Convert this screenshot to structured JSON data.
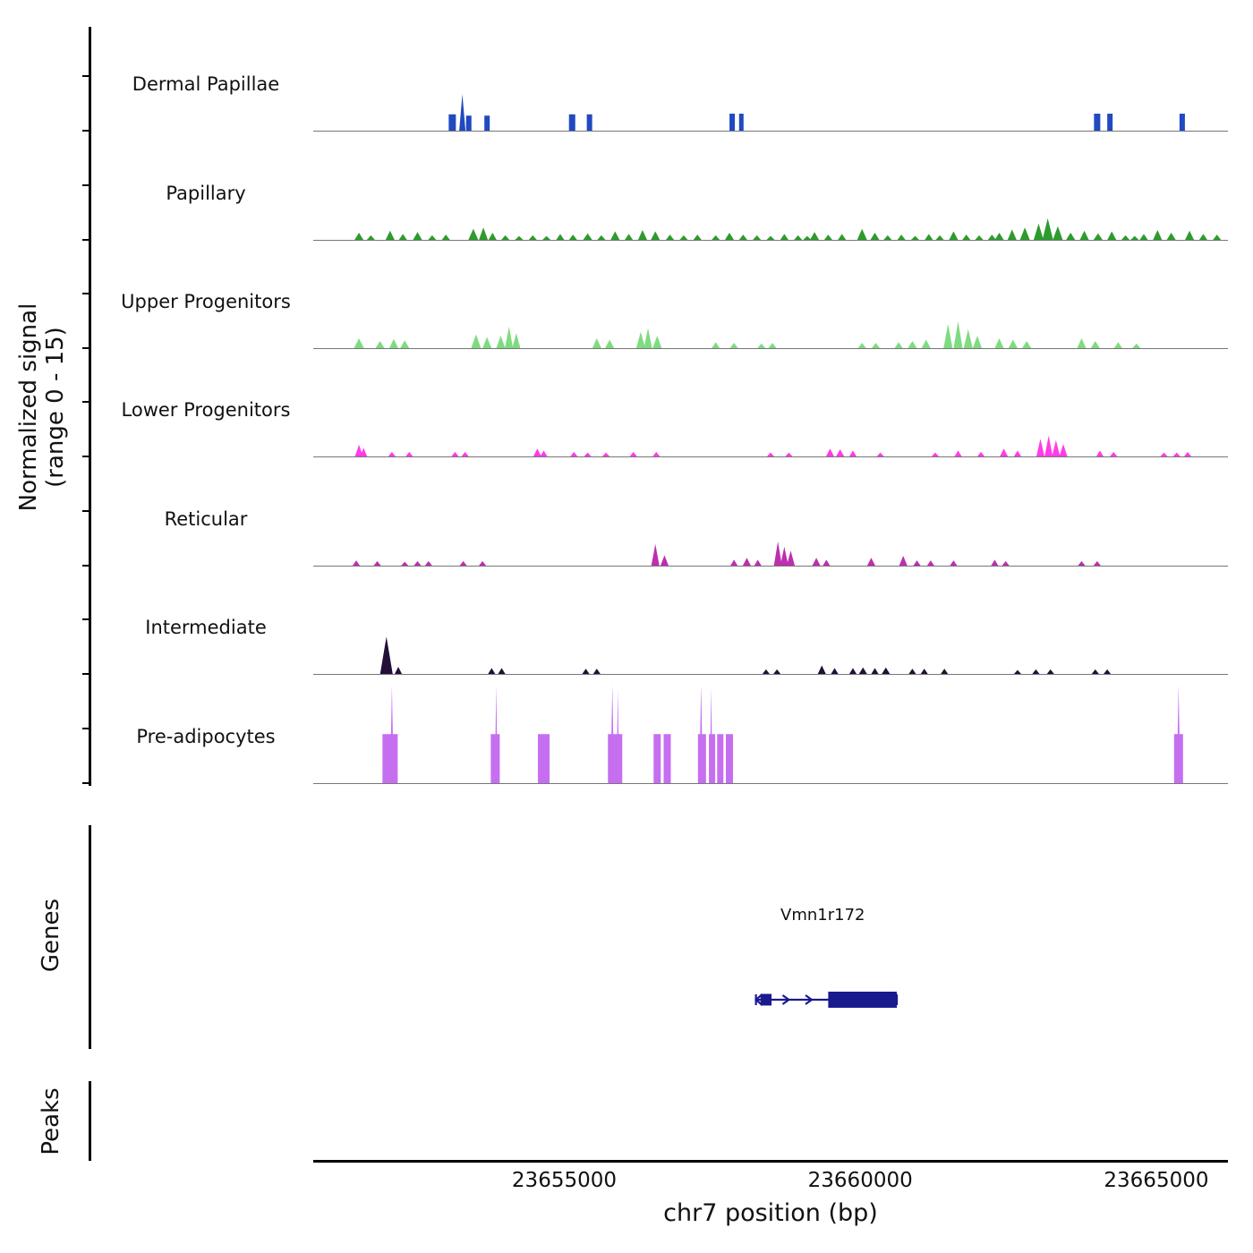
{
  "figure": {
    "x_axis_title": "chr7 position (bp)"
  },
  "chart_data": {
    "type": "area",
    "title": "",
    "x_axis": {
      "label": "chr7 position (bp)",
      "range_bp": [
        23650760,
        23666210
      ],
      "ticks_bp": [
        23655000,
        23660000,
        23665000
      ]
    },
    "y_axis": {
      "label": "Normalized signal (range 0 - 15)",
      "label_line1": "Normalized signal",
      "label_line2": "(range 0 - 15)",
      "range": [
        0,
        15
      ]
    },
    "tracks": [
      {
        "name": "Dermal Papillae",
        "color": "#2149c1",
        "bars": [
          [
            0.152,
            2.5,
            8
          ],
          [
            0.17,
            2.3,
            6
          ],
          [
            0.19,
            2.3,
            6
          ],
          [
            0.283,
            2.5,
            7
          ],
          [
            0.302,
            2.5,
            6
          ],
          [
            0.458,
            2.6,
            6
          ],
          [
            0.468,
            2.6,
            5
          ],
          [
            0.857,
            2.6,
            7
          ],
          [
            0.871,
            2.6,
            6
          ],
          [
            0.95,
            2.6,
            6
          ]
        ],
        "bumps": [
          [
            0.163,
            5.6,
            7
          ]
        ]
      },
      {
        "name": "Papillary",
        "color": "#2d9b2d",
        "bars": [],
        "bumps": [
          [
            0.05,
            1.1,
            10
          ],
          [
            0.063,
            0.7,
            9
          ],
          [
            0.084,
            1.4,
            10
          ],
          [
            0.098,
            0.9,
            9
          ],
          [
            0.114,
            1.2,
            10
          ],
          [
            0.13,
            0.7,
            9
          ],
          [
            0.145,
            0.8,
            9
          ],
          [
            0.175,
            1.7,
            11
          ],
          [
            0.186,
            1.9,
            10
          ],
          [
            0.196,
            1.1,
            9
          ],
          [
            0.21,
            0.7,
            9
          ],
          [
            0.225,
            0.6,
            9
          ],
          [
            0.24,
            0.7,
            9
          ],
          [
            0.255,
            0.6,
            9
          ],
          [
            0.27,
            0.9,
            9
          ],
          [
            0.284,
            0.8,
            9
          ],
          [
            0.3,
            1.0,
            10
          ],
          [
            0.315,
            0.7,
            9
          ],
          [
            0.33,
            1.3,
            10
          ],
          [
            0.345,
            0.9,
            9
          ],
          [
            0.36,
            1.5,
            10
          ],
          [
            0.374,
            1.3,
            10
          ],
          [
            0.39,
            0.8,
            9
          ],
          [
            0.405,
            0.7,
            9
          ],
          [
            0.42,
            0.8,
            9
          ],
          [
            0.44,
            0.7,
            9
          ],
          [
            0.455,
            1.1,
            10
          ],
          [
            0.47,
            0.8,
            9
          ],
          [
            0.485,
            0.7,
            9
          ],
          [
            0.5,
            0.6,
            9
          ],
          [
            0.515,
            0.9,
            9
          ],
          [
            0.53,
            0.7,
            9
          ],
          [
            0.54,
            0.6,
            9
          ],
          [
            0.548,
            1.2,
            10
          ],
          [
            0.563,
            0.8,
            9
          ],
          [
            0.578,
            0.9,
            9
          ],
          [
            0.6,
            1.7,
            11
          ],
          [
            0.614,
            1.1,
            10
          ],
          [
            0.628,
            0.7,
            9
          ],
          [
            0.643,
            0.8,
            9
          ],
          [
            0.658,
            0.6,
            9
          ],
          [
            0.673,
            0.9,
            9
          ],
          [
            0.685,
            0.7,
            9
          ],
          [
            0.7,
            1.3,
            10
          ],
          [
            0.714,
            0.8,
            9
          ],
          [
            0.728,
            0.7,
            9
          ],
          [
            0.742,
            0.8,
            9
          ],
          [
            0.75,
            1.1,
            10
          ],
          [
            0.764,
            1.6,
            10
          ],
          [
            0.778,
            1.9,
            11
          ],
          [
            0.793,
            2.5,
            11
          ],
          [
            0.803,
            3.3,
            12
          ],
          [
            0.814,
            2.1,
            11
          ],
          [
            0.828,
            1.1,
            10
          ],
          [
            0.843,
            1.4,
            10
          ],
          [
            0.858,
            1.0,
            10
          ],
          [
            0.873,
            1.3,
            10
          ],
          [
            0.888,
            0.7,
            9
          ],
          [
            0.898,
            0.6,
            9
          ],
          [
            0.908,
            0.9,
            9
          ],
          [
            0.923,
            1.5,
            10
          ],
          [
            0.938,
            1.1,
            10
          ],
          [
            0.958,
            1.4,
            10
          ],
          [
            0.973,
            0.9,
            9
          ],
          [
            0.988,
            0.8,
            9
          ]
        ]
      },
      {
        "name": "Upper Progenitors",
        "color": "#7fdb7f",
        "bars": [],
        "bumps": [
          [
            0.05,
            1.5,
            11
          ],
          [
            0.073,
            1.1,
            10
          ],
          [
            0.088,
            1.4,
            10
          ],
          [
            0.1,
            1.2,
            10
          ],
          [
            0.178,
            2.1,
            11
          ],
          [
            0.19,
            1.7,
            10
          ],
          [
            0.205,
            1.9,
            10
          ],
          [
            0.214,
            3.3,
            9
          ],
          [
            0.222,
            2.3,
            9
          ],
          [
            0.31,
            1.5,
            10
          ],
          [
            0.324,
            1.3,
            10
          ],
          [
            0.358,
            2.5,
            10
          ],
          [
            0.366,
            3.1,
            9
          ],
          [
            0.376,
            1.9,
            10
          ],
          [
            0.44,
            0.9,
            9
          ],
          [
            0.46,
            0.8,
            9
          ],
          [
            0.49,
            0.7,
            9
          ],
          [
            0.502,
            0.8,
            9
          ],
          [
            0.6,
            0.8,
            9
          ],
          [
            0.615,
            0.8,
            9
          ],
          [
            0.64,
            0.9,
            9
          ],
          [
            0.655,
            1.1,
            10
          ],
          [
            0.67,
            1.3,
            10
          ],
          [
            0.694,
            3.7,
            10
          ],
          [
            0.705,
            4.1,
            10
          ],
          [
            0.716,
            2.9,
            10
          ],
          [
            0.726,
            1.9,
            10
          ],
          [
            0.75,
            1.5,
            10
          ],
          [
            0.765,
            1.3,
            10
          ],
          [
            0.78,
            1.1,
            10
          ],
          [
            0.84,
            1.5,
            10
          ],
          [
            0.855,
            1.1,
            10
          ],
          [
            0.88,
            0.9,
            9
          ],
          [
            0.9,
            0.7,
            9
          ]
        ]
      },
      {
        "name": "Lower Progenitors",
        "color": "#ff3ce8",
        "bars": [],
        "bumps": [
          [
            0.05,
            1.8,
            9
          ],
          [
            0.055,
            1.3,
            8
          ],
          [
            0.086,
            0.7,
            8
          ],
          [
            0.105,
            0.7,
            8
          ],
          [
            0.155,
            0.7,
            8
          ],
          [
            0.166,
            0.7,
            8
          ],
          [
            0.245,
            1.2,
            9
          ],
          [
            0.252,
            0.9,
            8
          ],
          [
            0.285,
            0.7,
            8
          ],
          [
            0.3,
            0.6,
            8
          ],
          [
            0.32,
            0.6,
            8
          ],
          [
            0.35,
            0.7,
            8
          ],
          [
            0.375,
            0.7,
            8
          ],
          [
            0.5,
            0.6,
            8
          ],
          [
            0.52,
            0.6,
            8
          ],
          [
            0.565,
            1.2,
            9
          ],
          [
            0.576,
            1.1,
            9
          ],
          [
            0.59,
            0.9,
            8
          ],
          [
            0.62,
            0.6,
            8
          ],
          [
            0.68,
            0.6,
            8
          ],
          [
            0.705,
            0.9,
            8
          ],
          [
            0.73,
            0.7,
            8
          ],
          [
            0.755,
            1.2,
            9
          ],
          [
            0.77,
            0.9,
            8
          ],
          [
            0.795,
            2.7,
            9
          ],
          [
            0.804,
            3.2,
            9
          ],
          [
            0.812,
            2.5,
            9
          ],
          [
            0.82,
            1.9,
            9
          ],
          [
            0.86,
            0.9,
            8
          ],
          [
            0.875,
            0.7,
            8
          ],
          [
            0.93,
            0.6,
            8
          ],
          [
            0.944,
            0.6,
            8
          ],
          [
            0.956,
            0.7,
            8
          ]
        ]
      },
      {
        "name": "Reticular",
        "color": "#bd2fae",
        "bars": [],
        "bumps": [
          [
            0.047,
            0.8,
            8
          ],
          [
            0.07,
            0.7,
            8
          ],
          [
            0.1,
            0.6,
            8
          ],
          [
            0.114,
            0.7,
            8
          ],
          [
            0.126,
            0.7,
            8
          ],
          [
            0.164,
            0.7,
            8
          ],
          [
            0.185,
            0.7,
            8
          ],
          [
            0.374,
            3.3,
            9
          ],
          [
            0.384,
            1.6,
            9
          ],
          [
            0.46,
            0.9,
            8
          ],
          [
            0.474,
            1.2,
            9
          ],
          [
            0.486,
            0.9,
            8
          ],
          [
            0.508,
            3.7,
            9
          ],
          [
            0.515,
            2.9,
            9
          ],
          [
            0.522,
            2.3,
            9
          ],
          [
            0.55,
            1.2,
            9
          ],
          [
            0.561,
            0.9,
            8
          ],
          [
            0.61,
            1.2,
            9
          ],
          [
            0.645,
            1.5,
            9
          ],
          [
            0.66,
            0.8,
            8
          ],
          [
            0.675,
            0.8,
            8
          ],
          [
            0.7,
            0.8,
            8
          ],
          [
            0.745,
            0.9,
            8
          ],
          [
            0.757,
            0.7,
            8
          ],
          [
            0.84,
            0.7,
            8
          ],
          [
            0.857,
            0.7,
            8
          ]
        ]
      },
      {
        "name": "Intermediate",
        "color": "#221038",
        "bars": [],
        "bumps": [
          [
            0.08,
            5.7,
            14
          ],
          [
            0.093,
            1.1,
            8
          ],
          [
            0.195,
            0.9,
            8
          ],
          [
            0.206,
            0.9,
            8
          ],
          [
            0.298,
            0.8,
            8
          ],
          [
            0.31,
            0.8,
            8
          ],
          [
            0.495,
            0.7,
            8
          ],
          [
            0.507,
            0.7,
            8
          ],
          [
            0.556,
            1.3,
            9
          ],
          [
            0.57,
            0.9,
            8
          ],
          [
            0.59,
            0.9,
            8
          ],
          [
            0.601,
            1.0,
            9
          ],
          [
            0.614,
            0.9,
            8
          ],
          [
            0.626,
            1.0,
            9
          ],
          [
            0.655,
            0.8,
            8
          ],
          [
            0.668,
            0.8,
            8
          ],
          [
            0.69,
            0.8,
            8
          ],
          [
            0.77,
            0.6,
            8
          ],
          [
            0.79,
            0.7,
            8
          ],
          [
            0.806,
            0.7,
            8
          ],
          [
            0.855,
            0.7,
            8
          ],
          [
            0.868,
            0.7,
            8
          ]
        ]
      },
      {
        "name": "Pre-adipocytes",
        "color": "#c66ef0",
        "bars": [
          [
            0.084,
            7.5,
            17
          ],
          [
            0.199,
            7.5,
            10
          ],
          [
            0.252,
            7.5,
            13
          ],
          [
            0.33,
            7.5,
            16
          ],
          [
            0.376,
            7.5,
            8
          ],
          [
            0.387,
            7.5,
            8
          ],
          [
            0.425,
            7.5,
            9
          ],
          [
            0.436,
            7.5,
            7
          ],
          [
            0.445,
            7.5,
            7
          ],
          [
            0.455,
            7.5,
            8
          ],
          [
            0.946,
            7.5,
            10
          ]
        ],
        "bumps": [
          [
            0.086,
            15,
            4
          ],
          [
            0.2,
            15,
            3
          ],
          [
            0.327,
            15,
            4
          ],
          [
            0.333,
            14.2,
            3
          ],
          [
            0.424,
            15,
            4
          ],
          [
            0.435,
            14.5,
            3
          ],
          [
            0.946,
            15,
            4
          ]
        ]
      }
    ],
    "genes": {
      "label": "Genes",
      "items": [
        {
          "name": "Vmn1r172",
          "color": "#1a1a8f",
          "label_frac": 0.557,
          "line_start": 0.484,
          "line_end": 0.638,
          "utr_box": [
            0.489,
            0.501
          ],
          "cds_box": [
            0.563,
            0.638
          ],
          "arrows": [
            0.52,
            0.545
          ]
        }
      ]
    },
    "peaks": {
      "label": "Peaks",
      "items": []
    }
  }
}
